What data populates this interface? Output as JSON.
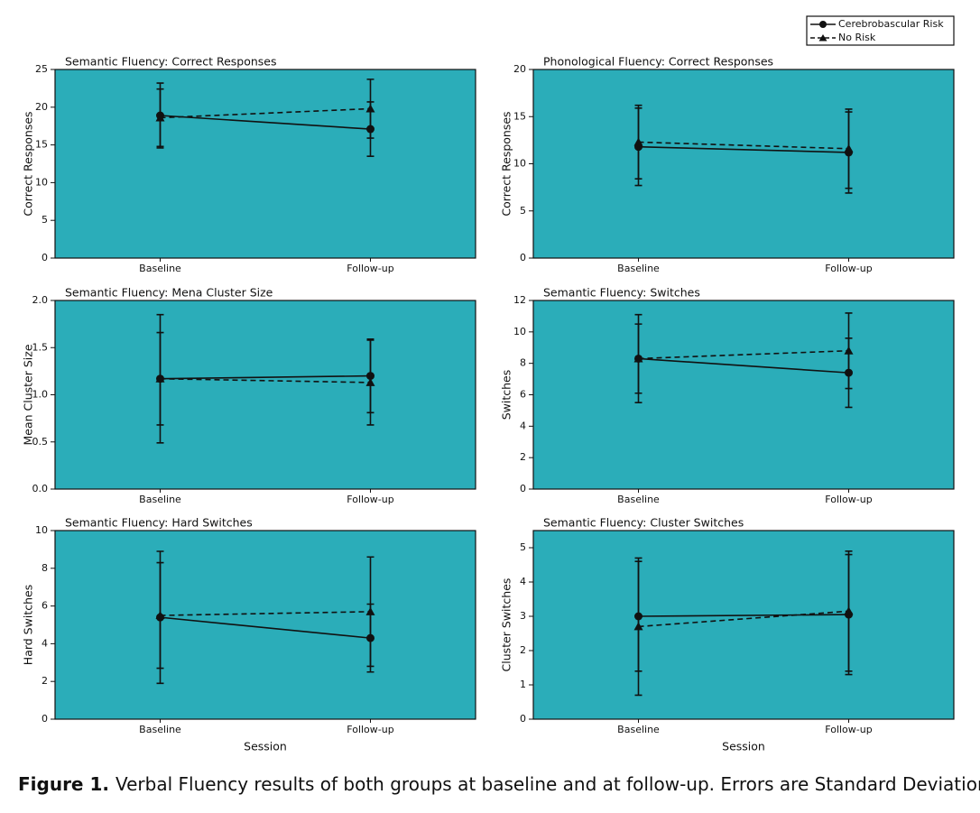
{
  "legend": [
    {
      "name": "Cerebrobascular Risk",
      "line": "solid",
      "marker": "circle"
    },
    {
      "name": "No Risk",
      "line": "dashed",
      "marker": "triangle"
    }
  ],
  "caption": {
    "label": "Figure 1.",
    "text": "Verbal Fluency results of both groups at baseline and at follow-up. Errors are Standard Deviations."
  },
  "chart_data": [
    {
      "type": "line",
      "title": "Semantic Fluency: Correct Responses",
      "y_label": "Correct Responses",
      "categories": [
        "Baseline",
        "Follow-up"
      ],
      "background": "#2badb9",
      "ylim": [
        0,
        25
      ],
      "yticks": [
        0,
        5,
        10,
        15,
        20,
        25
      ],
      "series": [
        {
          "values": [
            18.9,
            17.1
          ],
          "errors": [
            4.3,
            3.6
          ]
        },
        {
          "values": [
            18.6,
            19.8
          ],
          "errors": [
            3.8,
            3.9
          ]
        }
      ]
    },
    {
      "type": "line",
      "title": "Phonological Fluency: Correct Responses",
      "y_label": "Correct Responses",
      "categories": [
        "Baseline",
        "Follow-up"
      ],
      "background": "#2badb9",
      "ylim": [
        0,
        20
      ],
      "yticks": [
        0,
        5,
        10,
        15,
        20
      ],
      "series": [
        {
          "values": [
            11.8,
            11.2
          ],
          "errors": [
            4.1,
            4.3
          ]
        },
        {
          "values": [
            12.3,
            11.6
          ],
          "errors": [
            3.9,
            4.2
          ]
        }
      ]
    },
    {
      "type": "line",
      "title": "Semantic Fluency: Mena Cluster Size",
      "y_label": "Mean Cluster Size",
      "categories": [
        "Baseline",
        "Follow-up"
      ],
      "background": "#2badb9",
      "ylim": [
        0,
        2
      ],
      "yticks": [
        {
          "value": 0,
          "label": "0.0"
        },
        0.5,
        {
          "value": 1,
          "label": "1.0"
        },
        1.5,
        {
          "value": 2,
          "label": "2.0"
        }
      ],
      "series": [
        {
          "values": [
            1.17,
            1.2
          ],
          "errors": [
            0.68,
            0.39
          ]
        },
        {
          "values": [
            1.17,
            1.13
          ],
          "errors": [
            0.49,
            0.45
          ]
        }
      ]
    },
    {
      "type": "line",
      "title": "Semantic Fluency: Switches",
      "y_label": "Switches",
      "categories": [
        "Baseline",
        "Follow-up"
      ],
      "background": "#2badb9",
      "ylim": [
        0,
        12
      ],
      "yticks": [
        0,
        2,
        4,
        6,
        8,
        10,
        12
      ],
      "series": [
        {
          "values": [
            8.3,
            7.4
          ],
          "errors": [
            2.8,
            2.2
          ]
        },
        {
          "values": [
            8.3,
            8.8
          ],
          "errors": [
            2.2,
            2.4
          ]
        }
      ]
    },
    {
      "type": "line",
      "title": "Semantic Fluency: Hard Switches",
      "y_label": "Hard Switches",
      "x_label": "Session",
      "categories": [
        "Baseline",
        "Follow-up"
      ],
      "background": "#2badb9",
      "ylim": [
        0,
        10
      ],
      "yticks": [
        0,
        2,
        4,
        6,
        8,
        10
      ],
      "series": [
        {
          "values": [
            5.4,
            4.3
          ],
          "errors": [
            3.5,
            1.8
          ]
        },
        {
          "values": [
            5.5,
            5.7
          ],
          "errors": [
            2.8,
            2.9
          ]
        }
      ]
    },
    {
      "type": "line",
      "title": "Semantic Fluency: Cluster Switches",
      "y_label": "Cluster Switches",
      "x_label": "Session",
      "categories": [
        "Baseline",
        "Follow-up"
      ],
      "background": "#2badb9",
      "ylim": [
        0,
        5.5
      ],
      "yticks": [
        0,
        1,
        2,
        3,
        4,
        5
      ],
      "series": [
        {
          "values": [
            3.0,
            3.05
          ],
          "errors": [
            1.6,
            1.75
          ]
        },
        {
          "values": [
            2.7,
            3.15
          ],
          "errors": [
            2.0,
            1.75
          ]
        }
      ]
    }
  ]
}
